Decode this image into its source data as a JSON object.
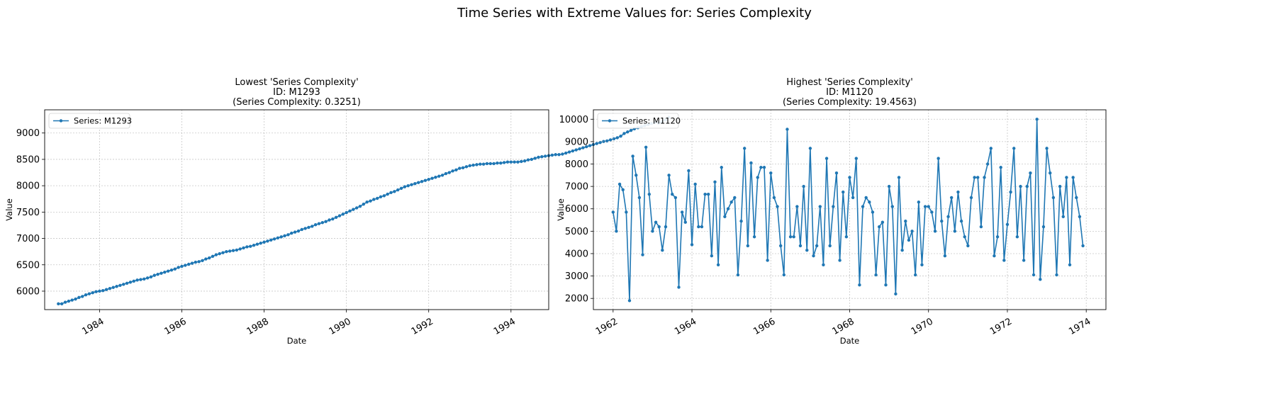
{
  "figure": {
    "suptitle": "Time Series with Extreme Values for: Series Complexity"
  },
  "chart_data": [
    {
      "type": "line",
      "title_lines": [
        "Lowest 'Series Complexity'",
        "ID: M1293",
        "(Series Complexity: 0.3251)"
      ],
      "xlabel": "Date",
      "ylabel": "Value",
      "legend": "Series: M1293",
      "legend_position": "top-left",
      "grid": true,
      "x_ticks": [
        "1984",
        "1986",
        "1988",
        "1990",
        "1992",
        "1994"
      ],
      "y_ticks": [
        6000,
        6500,
        7000,
        7500,
        8000,
        8500,
        9000
      ],
      "xlim": [
        "1982-09",
        "1994-12"
      ],
      "ylim": [
        5650,
        9440
      ],
      "start": "1983-01",
      "frequency": "monthly",
      "color": "#1f77b4",
      "values": [
        5760,
        5760,
        5790,
        5810,
        5830,
        5850,
        5880,
        5900,
        5930,
        5950,
        5970,
        5990,
        6000,
        6010,
        6030,
        6050,
        6070,
        6090,
        6110,
        6130,
        6150,
        6170,
        6190,
        6210,
        6220,
        6230,
        6250,
        6270,
        6300,
        6320,
        6340,
        6360,
        6380,
        6400,
        6420,
        6450,
        6470,
        6490,
        6510,
        6530,
        6550,
        6560,
        6580,
        6610,
        6630,
        6660,
        6690,
        6710,
        6730,
        6750,
        6760,
        6770,
        6780,
        6800,
        6820,
        6840,
        6850,
        6870,
        6890,
        6910,
        6930,
        6950,
        6970,
        6990,
        7010,
        7030,
        7050,
        7070,
        7100,
        7120,
        7140,
        7170,
        7190,
        7210,
        7230,
        7260,
        7280,
        7300,
        7320,
        7350,
        7370,
        7400,
        7430,
        7460,
        7490,
        7520,
        7550,
        7580,
        7610,
        7650,
        7690,
        7710,
        7740,
        7760,
        7790,
        7810,
        7840,
        7870,
        7890,
        7920,
        7950,
        7980,
        8000,
        8020,
        8040,
        8060,
        8080,
        8100,
        8120,
        8140,
        8160,
        8180,
        8200,
        8230,
        8250,
        8280,
        8300,
        8330,
        8340,
        8360,
        8380,
        8390,
        8400,
        8410,
        8410,
        8420,
        8420,
        8420,
        8430,
        8430,
        8440,
        8450,
        8450,
        8450,
        8450,
        8460,
        8470,
        8490,
        8500,
        8520,
        8540,
        8550,
        8560,
        8570,
        8580,
        8590,
        8590,
        8600,
        8620,
        8640,
        8660,
        8680,
        8700,
        8720,
        8740,
        8760,
        8780,
        8800,
        8820,
        8840,
        8850,
        8870,
        8890,
        8910,
        8940,
        8990,
        9020,
        9050,
        9080,
        9100,
        9120,
        9140,
        9160,
        9180,
        9200,
        9190,
        9210,
        9250,
        9300
      ]
    },
    {
      "type": "line",
      "title_lines": [
        "Highest 'Series Complexity'",
        "ID: M1120",
        "(Series Complexity: 19.4563)"
      ],
      "xlabel": "Date",
      "ylabel": "Value",
      "legend": "Series: M1120",
      "legend_position": "top-left",
      "grid": true,
      "x_ticks": [
        "1962",
        "1964",
        "1966",
        "1968",
        "1970",
        "1972",
        "1974"
      ],
      "y_ticks": [
        2000,
        3000,
        4000,
        5000,
        6000,
        7000,
        8000,
        9000,
        10000
      ],
      "xlim": [
        "1961-07",
        "1974-07"
      ],
      "ylim": [
        1500,
        10420
      ],
      "start": "1962-01",
      "frequency": "monthly",
      "color": "#1f77b4",
      "values": [
        5850,
        5000,
        7100,
        6850,
        5850,
        1900,
        8350,
        7500,
        6500,
        3950,
        8750,
        6650,
        5000,
        5400,
        5200,
        4150,
        5200,
        7500,
        6650,
        6500,
        2500,
        5850,
        5400,
        7700,
        4400,
        7100,
        5200,
        5200,
        6650,
        6650,
        3900,
        7200,
        3500,
        7850,
        5650,
        6000,
        6300,
        6500,
        3050,
        5450,
        8700,
        4350,
        8050,
        4750,
        7400,
        7850,
        7850,
        3700,
        7600,
        6500,
        6100,
        4350,
        3050,
        9550,
        4750,
        4750,
        6100,
        4350,
        7000,
        4150,
        8700,
        3900,
        4350,
        6100,
        3500,
        8250,
        4350,
        6100,
        7600,
        3700,
        6750,
        4750,
        7400,
        6500,
        8250,
        2600,
        6100,
        6500,
        6300,
        5850,
        3050,
        5200,
        5400,
        2600,
        7000,
        6100,
        2200,
        7400,
        4150,
        5450,
        4600,
        5000,
        3050,
        6300,
        3500,
        6100,
        6100,
        5850,
        5000,
        8250,
        5450,
        3900,
        5650,
        6500,
        5000,
        6750,
        5450,
        4750,
        4350,
        6500,
        7400,
        7400,
        5200,
        7400,
        8000,
        8700,
        3900,
        4750,
        7850,
        3700,
        5300,
        6750,
        8700,
        4750,
        7000,
        3700,
        7000,
        7600,
        3050,
        10000,
        2850,
        5200,
        8700,
        7600,
        6500,
        3050,
        7000,
        5650,
        7400,
        3500,
        7400,
        6500,
        5650,
        4350
      ]
    }
  ]
}
